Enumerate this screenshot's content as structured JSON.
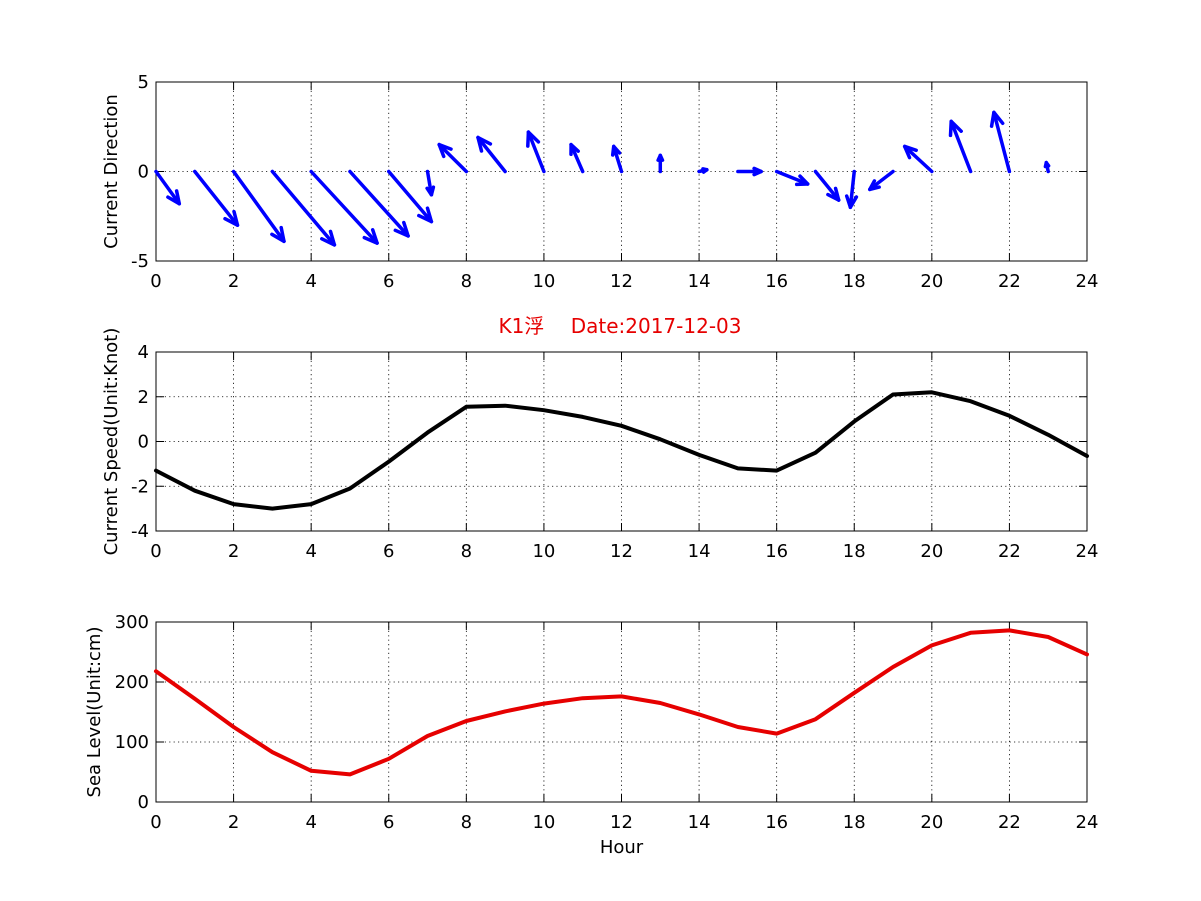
{
  "colors": {
    "direction": "#0000ff",
    "speed": "#000000",
    "sea_level": "#e60000",
    "title": "#e60000"
  },
  "title": "K1浮　 Date:2017-12-03",
  "chart_data": [
    {
      "type": "quiver",
      "ylabel": "Current Direction",
      "xlim": [
        0,
        24
      ],
      "ylim": [
        -5,
        5
      ],
      "xticks": [
        "0",
        "2",
        "4",
        "6",
        "8",
        "10",
        "12",
        "14",
        "16",
        "18",
        "20",
        "22",
        "24"
      ],
      "yticks": [
        "-5",
        "0",
        "5"
      ],
      "grid": true,
      "x": [
        0,
        1,
        2,
        3,
        4,
        5,
        6,
        7,
        8,
        9,
        10,
        11,
        12,
        13,
        14,
        15,
        16,
        17,
        18,
        19,
        20,
        21,
        22,
        23
      ],
      "u": [
        0.6,
        1.1,
        1.3,
        1.6,
        1.7,
        1.5,
        1.1,
        0.1,
        -0.7,
        -0.7,
        -0.4,
        -0.3,
        -0.2,
        0.0,
        0.2,
        0.6,
        0.8,
        0.6,
        -0.1,
        -0.6,
        -0.7,
        -0.5,
        -0.4,
        -0.05
      ],
      "v": [
        -1.8,
        -3.0,
        -3.9,
        -4.1,
        -4.0,
        -3.6,
        -2.8,
        -1.3,
        1.5,
        1.9,
        2.2,
        1.5,
        1.4,
        0.9,
        0.1,
        0.0,
        -0.7,
        -1.6,
        -2.0,
        -1.0,
        1.4,
        2.8,
        3.3,
        0.5
      ],
      "vector_units": "speed along hour / current direction axes"
    },
    {
      "type": "line",
      "ylabel": "Current Speed(Unit:Knot)",
      "xlim": [
        0,
        24
      ],
      "ylim": [
        -4,
        4
      ],
      "xticks": [
        "0",
        "2",
        "4",
        "6",
        "8",
        "10",
        "12",
        "14",
        "16",
        "18",
        "20",
        "22",
        "24"
      ],
      "yticks": [
        "-4",
        "-2",
        "0",
        "2",
        "4"
      ],
      "grid": true,
      "x": [
        0,
        1,
        2,
        3,
        4,
        5,
        6,
        7,
        8,
        9,
        10,
        11,
        12,
        13,
        14,
        15,
        16,
        17,
        18,
        19,
        20,
        21,
        22,
        23,
        24
      ],
      "values": [
        -1.3,
        -2.2,
        -2.8,
        -3.0,
        -2.8,
        -2.1,
        -0.9,
        0.4,
        1.55,
        1.6,
        1.4,
        1.1,
        0.7,
        0.1,
        -0.6,
        -1.2,
        -1.3,
        -0.5,
        0.9,
        2.1,
        2.2,
        1.8,
        1.15,
        0.3,
        -0.65
      ]
    },
    {
      "type": "line",
      "ylabel": "Sea Level(Unit:cm)",
      "xlabel": "Hour",
      "xlim": [
        0,
        24
      ],
      "ylim": [
        0,
        300
      ],
      "xticks": [
        "0",
        "2",
        "4",
        "6",
        "8",
        "10",
        "12",
        "14",
        "16",
        "18",
        "20",
        "22",
        "24"
      ],
      "yticks": [
        "0",
        "100",
        "200",
        "300"
      ],
      "grid": true,
      "x": [
        0,
        1,
        2,
        3,
        4,
        5,
        6,
        7,
        8,
        9,
        10,
        11,
        12,
        13,
        14,
        15,
        16,
        17,
        18,
        19,
        20,
        21,
        22,
        23,
        24
      ],
      "values": [
        218,
        172,
        125,
        83,
        52,
        46,
        72,
        110,
        135,
        151,
        164,
        173,
        176,
        165,
        146,
        125,
        114,
        138,
        182,
        225,
        261,
        282,
        286,
        275,
        246
      ]
    }
  ]
}
